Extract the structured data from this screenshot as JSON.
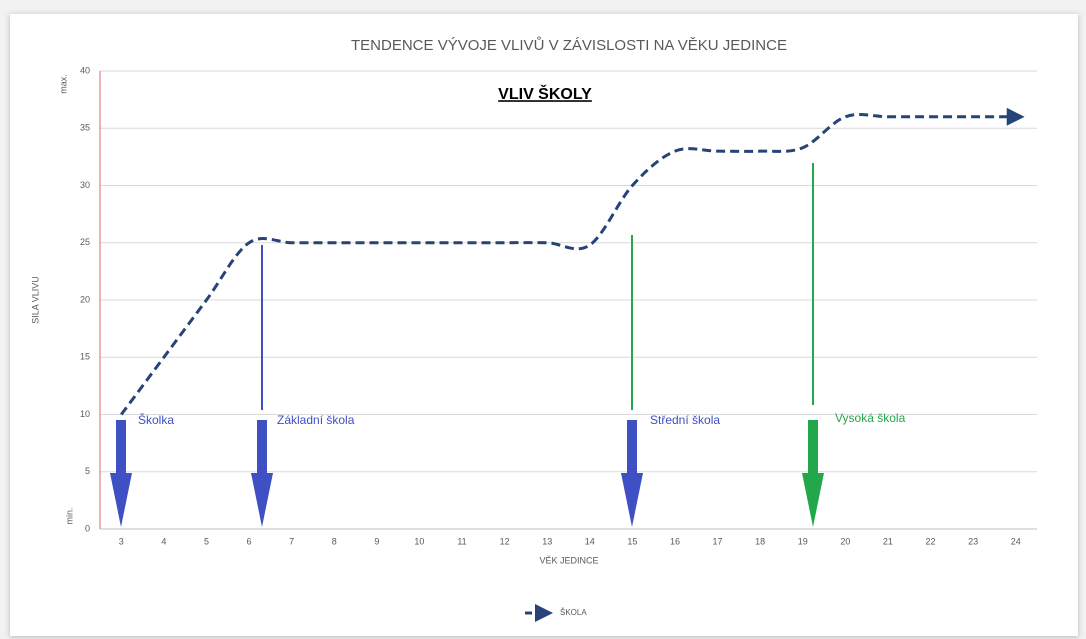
{
  "chart_data": {
    "type": "line",
    "title": "TENDENCE VÝVOJE VLIVŮ V ZÁVISLOSTI NA VĚKU JEDINCE",
    "subtitle": "VLIV ŠKOLY",
    "x_label": "VĚK JEDINCE",
    "y_label": "SILA VLIVU",
    "y_max_label": "max.",
    "y_min_label": "min.",
    "categories": [
      3,
      4,
      5,
      6,
      7,
      8,
      9,
      10,
      11,
      12,
      13,
      14,
      15,
      16,
      17,
      18,
      19,
      20,
      21,
      22,
      23,
      24
    ],
    "series": [
      {
        "name": "ŠKOLA",
        "color": "#264478",
        "values": [
          10,
          15,
          20,
          25,
          25,
          25,
          25,
          25,
          25,
          25,
          25,
          24.8,
          30,
          33,
          33,
          33,
          33.3,
          36,
          36,
          36,
          36,
          36
        ]
      }
    ],
    "ylim": [
      0,
      40
    ],
    "yticks": [
      0,
      5,
      10,
      15,
      20,
      25,
      30,
      35,
      40
    ],
    "grid": true,
    "legend": "bottom",
    "annotations": [
      {
        "text": "Školka",
        "color": "#3f4fc4"
      },
      {
        "text": "Základní škola",
        "color": "#3f4fc4"
      },
      {
        "text": "Střední škola",
        "color": "#3f4fc4"
      },
      {
        "text": "Vysoká škola",
        "color": "#22a84a"
      }
    ]
  }
}
